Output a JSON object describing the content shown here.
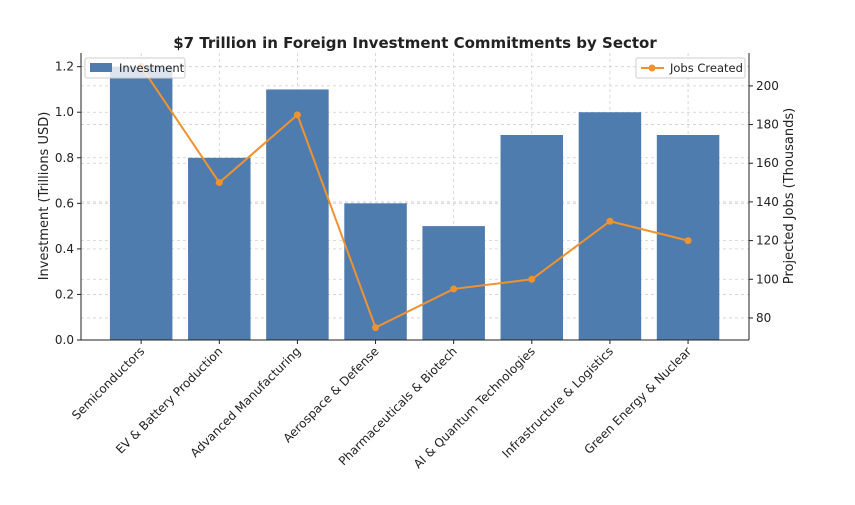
{
  "chart_data": {
    "type": "bar+line",
    "title": "$7 Trillion in Foreign Investment Commitments by Sector",
    "categories": [
      "Semiconductors",
      "EV & Battery Production",
      "Advanced Manufacturing",
      "Aerospace & Defense",
      "Pharmaceuticals & Biotech",
      "AI & Quantum Technologies",
      "Infrastructure & Logistics",
      "Green Energy & Nuclear"
    ],
    "series": [
      {
        "name": "Investment",
        "type": "bar",
        "axis": "left",
        "color": "#4f7cae",
        "values": [
          1.2,
          0.8,
          1.1,
          0.6,
          0.5,
          0.9,
          1.0,
          0.9
        ]
      },
      {
        "name": "Jobs Created",
        "type": "line",
        "axis": "right",
        "color": "#f0922e",
        "values": [
          210,
          150,
          185,
          75,
          95,
          100,
          130,
          120
        ]
      }
    ],
    "ylabel": "Investment (Trillions USD)",
    "y2label": "Projected Jobs (Thousands)",
    "ylim": [
      0,
      1.26
    ],
    "y2lim": [
      68.6,
      217
    ],
    "yticks": [
      "0.0",
      "0.2",
      "0.4",
      "0.6",
      "0.8",
      "1.0",
      "1.2"
    ],
    "y2ticks": [
      "80",
      "100",
      "120",
      "140",
      "160",
      "180",
      "200"
    ],
    "grid": true,
    "legend": {
      "Investment": "top-left",
      "Jobs Created": "top-right"
    }
  }
}
